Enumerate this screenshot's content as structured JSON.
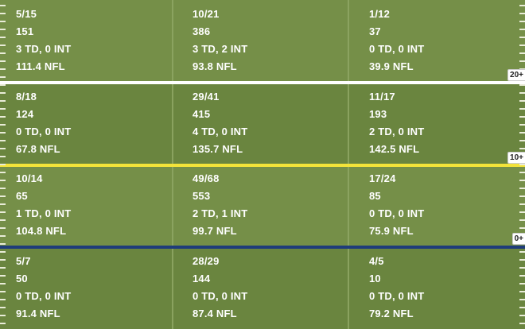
{
  "colors": {
    "turf": "#6e8a44",
    "white_line": "#ffffff",
    "yellow_line": "#f3e33a",
    "blue_line": "#1f3c7a"
  },
  "rows": [
    {
      "cells": [
        {
          "comp_att": "5/15",
          "yards": "151",
          "td_int": "3 TD, 0 INT",
          "rating": "111.4 NFL"
        },
        {
          "comp_att": "10/21",
          "yards": "386",
          "td_int": "3 TD, 2 INT",
          "rating": "93.8 NFL"
        },
        {
          "comp_att": "1/12",
          "yards": "37",
          "td_int": "0 TD, 0 INT",
          "rating": "39.9 NFL"
        }
      ],
      "tag": "20+"
    },
    {
      "cells": [
        {
          "comp_att": "8/18",
          "yards": "124",
          "td_int": "0 TD, 0 INT",
          "rating": "67.8 NFL"
        },
        {
          "comp_att": "29/41",
          "yards": "415",
          "td_int": "4 TD, 0 INT",
          "rating": "135.7 NFL"
        },
        {
          "comp_att": "11/17",
          "yards": "193",
          "td_int": "2 TD, 0 INT",
          "rating": "142.5 NFL"
        }
      ],
      "tag": "10+"
    },
    {
      "cells": [
        {
          "comp_att": "10/14",
          "yards": "65",
          "td_int": "1 TD, 0 INT",
          "rating": "104.8 NFL"
        },
        {
          "comp_att": "49/68",
          "yards": "553",
          "td_int": "2 TD, 1 INT",
          "rating": "99.7 NFL"
        },
        {
          "comp_att": "17/24",
          "yards": "85",
          "td_int": "0 TD, 0 INT",
          "rating": "75.9 NFL"
        }
      ],
      "tag": "0+"
    },
    {
      "cells": [
        {
          "comp_att": "5/7",
          "yards": "50",
          "td_int": "0 TD, 0 INT",
          "rating": "91.4 NFL"
        },
        {
          "comp_att": "28/29",
          "yards": "144",
          "td_int": "0 TD, 0 INT",
          "rating": "87.4 NFL"
        },
        {
          "comp_att": "4/5",
          "yards": "10",
          "td_int": "0 TD, 0 INT",
          "rating": "79.2 NFL"
        }
      ]
    }
  ]
}
